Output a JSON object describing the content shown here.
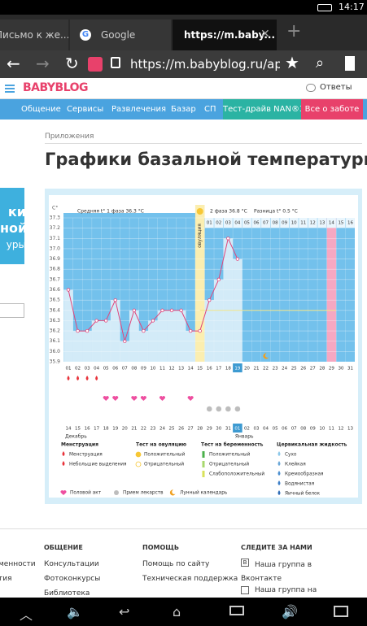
{
  "status_bar": {
    "time": "14:17"
  },
  "tabs": [
    "Письмо к же...",
    "Google",
    "https://m.baby..."
  ],
  "address_bar": {
    "url": "https://m.babyblog.ru/app/l"
  },
  "header": {
    "logo": "BABYBLOG",
    "answers": "Ответы"
  },
  "nav": [
    "Общение",
    "Сервисы",
    "Развлечения",
    "Базар",
    "СП",
    "Тест-драйв NAN®3",
    "Все о заботе"
  ],
  "breadcrumb": "Приложения",
  "title": "Графики базальной температуры",
  "banner": [
    "ки",
    "ной",
    "уры"
  ],
  "chart": {
    "type": "line",
    "y_unit": "C°",
    "phase1_label": "Средняя t° 1 фаза 36.3 °С",
    "phase2_label": "2 фаза 36.8 °С",
    "diff_label": "Разница t° 0.5 °С",
    "ovulation_label": "овуляция",
    "ylim": [
      35.9,
      37.3
    ],
    "yticks": [
      35.9,
      {
        "value": 36,
        "label": "36.0"
      },
      36.1,
      36.2,
      36.3,
      36.4,
      36.5,
      36.6,
      36.7,
      36.8,
      36.9,
      {
        "value": 37,
        "label": "37.0"
      },
      37.1,
      37.2,
      37.3
    ],
    "days": [
      "01",
      "02",
      "03",
      "04",
      "05",
      "06",
      "07",
      "08",
      "09",
      "10",
      "11",
      "12",
      "13",
      "14",
      "15",
      "16",
      "17",
      "18",
      "19",
      "20",
      "21",
      "22",
      "23",
      "24",
      "25",
      "26",
      "27",
      "28",
      "29",
      "30",
      "31"
    ],
    "phase2_days": [
      "01",
      "02",
      "03",
      "04",
      "05",
      "06",
      "07",
      "08",
      "09",
      "10",
      "11",
      "12",
      "13",
      "14",
      "15",
      "16"
    ],
    "dates": [
      "14",
      "15",
      "16",
      "17",
      "18",
      "19",
      "20",
      "21",
      "22",
      "23",
      "24",
      "25",
      "26",
      "27",
      "28",
      "29",
      "30",
      "31",
      "01",
      "02",
      "03",
      "04",
      "05",
      "06",
      "07",
      "08",
      "09",
      "10",
      "11",
      "12",
      "13"
    ],
    "months": [
      "Декабрь",
      "Январь"
    ],
    "temperatures": [
      36.6,
      36.2,
      36.2,
      36.3,
      36.3,
      36.5,
      36.1,
      36.4,
      36.2,
      36.3,
      36.4,
      36.4,
      36.4,
      36.2,
      36.2,
      36.5,
      36.7,
      37.1,
      36.9
    ],
    "coverline": 36.4,
    "ovulation_day": 15,
    "today": 19,
    "expected_period_day": 29,
    "menstruation_days": [
      1,
      2,
      3,
      4
    ],
    "sex_days": [
      5,
      6,
      8,
      9,
      11,
      14
    ],
    "medication_days": [
      16,
      17,
      18,
      19
    ],
    "moon_days": [
      22
    ],
    "legend": {
      "groups": [
        {
          "title": "Менструация",
          "items": [
            "Менструация",
            "Небольшие выделения"
          ]
        },
        {
          "title": "Тест на овуляцию",
          "items": [
            "Положительный",
            "Отрицательный"
          ]
        },
        {
          "title": "Тест на беременность",
          "items": [
            "Положительный",
            "Отрицательный",
            "Слабоположительный"
          ]
        },
        {
          "title": "Цервикальная жидкость",
          "items": [
            "Сухо",
            "Клейкая",
            "Кремообразная",
            "Водянистая",
            "Яичный белок"
          ]
        }
      ],
      "bottom": [
        "Половой акт",
        "Прием лекарств",
        "Лунный календарь"
      ]
    }
  },
  "footer": {
    "partial": [
      "менности",
      "тия"
    ],
    "columns": [
      {
        "title": "ОБЩЕНИЕ",
        "links": [
          "Консультации",
          "Фотоконкурсы",
          "Библиотека"
        ]
      },
      {
        "title": "ПОМОЩЬ",
        "links": [
          "Помощь по сайту",
          "Техническая поддержка"
        ]
      },
      {
        "title": "СЛЕДИТЕ ЗА НАМИ",
        "links": [
          "Наша группа в Вконтакте",
          "Наша группа на"
        ]
      }
    ]
  }
}
